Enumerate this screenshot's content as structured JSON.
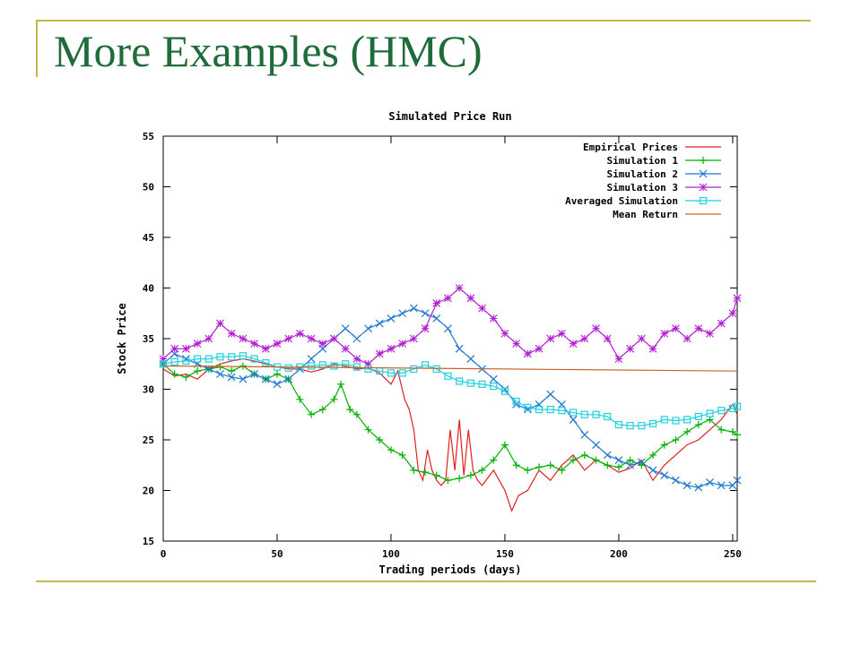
{
  "slide": {
    "title": "More Examples (HMC)"
  },
  "colors": {
    "title": "#1f6b3a",
    "accent": "#c8b84a"
  },
  "chart_data": {
    "type": "line",
    "title": "Simulated Price Run",
    "xlabel": "Trading periods (days)",
    "ylabel": "Stock Price",
    "xlim": [
      0,
      252
    ],
    "ylim": [
      15,
      55
    ],
    "xticks": [
      0,
      50,
      100,
      150,
      200,
      250
    ],
    "yticks": [
      15,
      20,
      25,
      30,
      35,
      40,
      45,
      50,
      55
    ],
    "grid": false,
    "legend_position": "top-right",
    "series": [
      {
        "name": "Empirical Prices",
        "color": "#e02020",
        "marker": "none",
        "x": [
          0,
          5,
          10,
          15,
          20,
          25,
          30,
          35,
          40,
          45,
          50,
          55,
          60,
          65,
          70,
          75,
          80,
          85,
          90,
          95,
          100,
          103,
          106,
          108,
          110,
          112,
          114,
          116,
          118,
          120,
          122,
          124,
          126,
          128,
          130,
          132,
          134,
          136,
          138,
          140,
          145,
          150,
          153,
          156,
          160,
          165,
          170,
          175,
          180,
          185,
          190,
          195,
          200,
          205,
          210,
          215,
          220,
          225,
          230,
          235,
          240,
          245,
          250,
          252
        ],
        "y": [
          32,
          31.3,
          31.5,
          31,
          32,
          32.5,
          32.8,
          33,
          32.8,
          32.5,
          32.2,
          32,
          32,
          31.7,
          32,
          32.5,
          32.3,
          32,
          32.1,
          31.6,
          30.5,
          31.8,
          29,
          28,
          26,
          22,
          21,
          24,
          22,
          21,
          20.5,
          21,
          26,
          22,
          27,
          21.5,
          26,
          22,
          21,
          20.5,
          22,
          20,
          18,
          19.5,
          20,
          22,
          21,
          22.5,
          23.5,
          22,
          23,
          22.5,
          21.8,
          22.2,
          23,
          21,
          22.5,
          23.5,
          24.5,
          25,
          26,
          27,
          28.5,
          27.5
        ]
      },
      {
        "name": "Simulation 1",
        "color": "#00b000",
        "marker": "plus",
        "x": [
          0,
          5,
          10,
          15,
          20,
          25,
          30,
          35,
          40,
          45,
          50,
          55,
          60,
          65,
          70,
          75,
          78,
          82,
          85,
          90,
          95,
          100,
          105,
          110,
          115,
          120,
          125,
          130,
          135,
          140,
          145,
          150,
          155,
          160,
          165,
          170,
          175,
          180,
          185,
          190,
          195,
          200,
          205,
          210,
          215,
          220,
          225,
          230,
          235,
          240,
          245,
          250,
          252
        ],
        "y": [
          32.5,
          31.5,
          31.2,
          31.8,
          32,
          32.2,
          31.8,
          32.3,
          31.5,
          31,
          31.5,
          31,
          29,
          27.5,
          28,
          29,
          30.5,
          28,
          27.5,
          26,
          25,
          24,
          23.5,
          22,
          21.8,
          21.5,
          21,
          21.2,
          21.5,
          22,
          23,
          24.5,
          22.5,
          22,
          22.3,
          22.5,
          22,
          23,
          23.5,
          23,
          22.5,
          22.3,
          23,
          22.5,
          23.5,
          24.5,
          25,
          25.8,
          26.5,
          27,
          26,
          25.8,
          25.5
        ]
      },
      {
        "name": "Simulation 2",
        "color": "#1e78d0",
        "marker": "x",
        "x": [
          0,
          5,
          10,
          15,
          20,
          25,
          30,
          35,
          40,
          45,
          50,
          55,
          60,
          65,
          70,
          75,
          80,
          85,
          90,
          95,
          100,
          105,
          110,
          115,
          120,
          125,
          130,
          135,
          140,
          145,
          150,
          155,
          160,
          165,
          170,
          175,
          180,
          185,
          190,
          195,
          200,
          205,
          210,
          215,
          220,
          225,
          230,
          235,
          240,
          245,
          250,
          252
        ],
        "y": [
          32.5,
          33.5,
          33,
          32.5,
          32,
          31.5,
          31.2,
          31,
          31.5,
          31,
          30.5,
          31,
          32,
          33,
          34,
          35,
          36,
          35,
          36,
          36.5,
          37,
          37.5,
          38,
          37.5,
          37,
          36,
          34,
          33,
          32,
          31,
          30,
          28.5,
          28,
          28.5,
          29.5,
          28.5,
          27,
          25.5,
          24.5,
          23.5,
          23,
          22.5,
          22.8,
          22,
          21.5,
          21,
          20.5,
          20.3,
          20.8,
          20.5,
          20.5,
          21
        ]
      },
      {
        "name": "Simulation 3",
        "color": "#b020d0",
        "marker": "star",
        "x": [
          0,
          5,
          10,
          15,
          20,
          25,
          30,
          35,
          40,
          45,
          50,
          55,
          60,
          65,
          70,
          75,
          80,
          85,
          90,
          95,
          100,
          105,
          110,
          115,
          120,
          125,
          130,
          135,
          140,
          145,
          150,
          155,
          160,
          165,
          170,
          175,
          180,
          185,
          190,
          195,
          200,
          205,
          210,
          215,
          220,
          225,
          230,
          235,
          240,
          245,
          250,
          252
        ],
        "y": [
          33,
          34,
          34,
          34.5,
          35,
          36.5,
          35.5,
          35,
          34.5,
          34,
          34.5,
          35,
          35.5,
          35,
          34.5,
          35,
          34,
          33,
          32.5,
          33.5,
          34,
          34.5,
          35,
          36,
          38.5,
          39,
          40,
          39,
          38,
          37,
          35.5,
          34.5,
          33.5,
          34,
          35,
          35.5,
          34.5,
          35,
          36,
          35,
          33,
          34,
          35,
          34,
          35.5,
          36,
          35,
          36,
          35.5,
          36.5,
          37.5,
          39
        ]
      },
      {
        "name": "Averaged Simulation",
        "color": "#20d0e0",
        "marker": "square",
        "x": [
          0,
          5,
          10,
          15,
          20,
          25,
          30,
          35,
          40,
          45,
          50,
          55,
          60,
          65,
          70,
          75,
          80,
          85,
          90,
          95,
          100,
          105,
          110,
          115,
          120,
          125,
          130,
          135,
          140,
          145,
          150,
          155,
          160,
          165,
          170,
          175,
          180,
          185,
          190,
          195,
          200,
          205,
          210,
          215,
          220,
          225,
          230,
          235,
          240,
          245,
          250,
          252
        ],
        "y": [
          32.5,
          32.7,
          32.8,
          33,
          33,
          33.2,
          33.2,
          33.3,
          33,
          32.6,
          32.2,
          32.1,
          32.2,
          32.3,
          32.4,
          32.3,
          32.5,
          32.2,
          32,
          31.8,
          31.6,
          31.6,
          32,
          32.4,
          32,
          31.3,
          30.8,
          30.6,
          30.5,
          30.3,
          29.8,
          28.8,
          28.2,
          28,
          28,
          27.9,
          27.7,
          27.5,
          27.5,
          27.3,
          26.5,
          26.4,
          26.4,
          26.6,
          27,
          26.9,
          27,
          27.3,
          27.6,
          27.9,
          28.1,
          28.3
        ]
      },
      {
        "name": "Mean Return",
        "color": "#c86428",
        "marker": "none",
        "x": [
          0,
          252
        ],
        "y": [
          32.3,
          31.8
        ]
      }
    ]
  }
}
